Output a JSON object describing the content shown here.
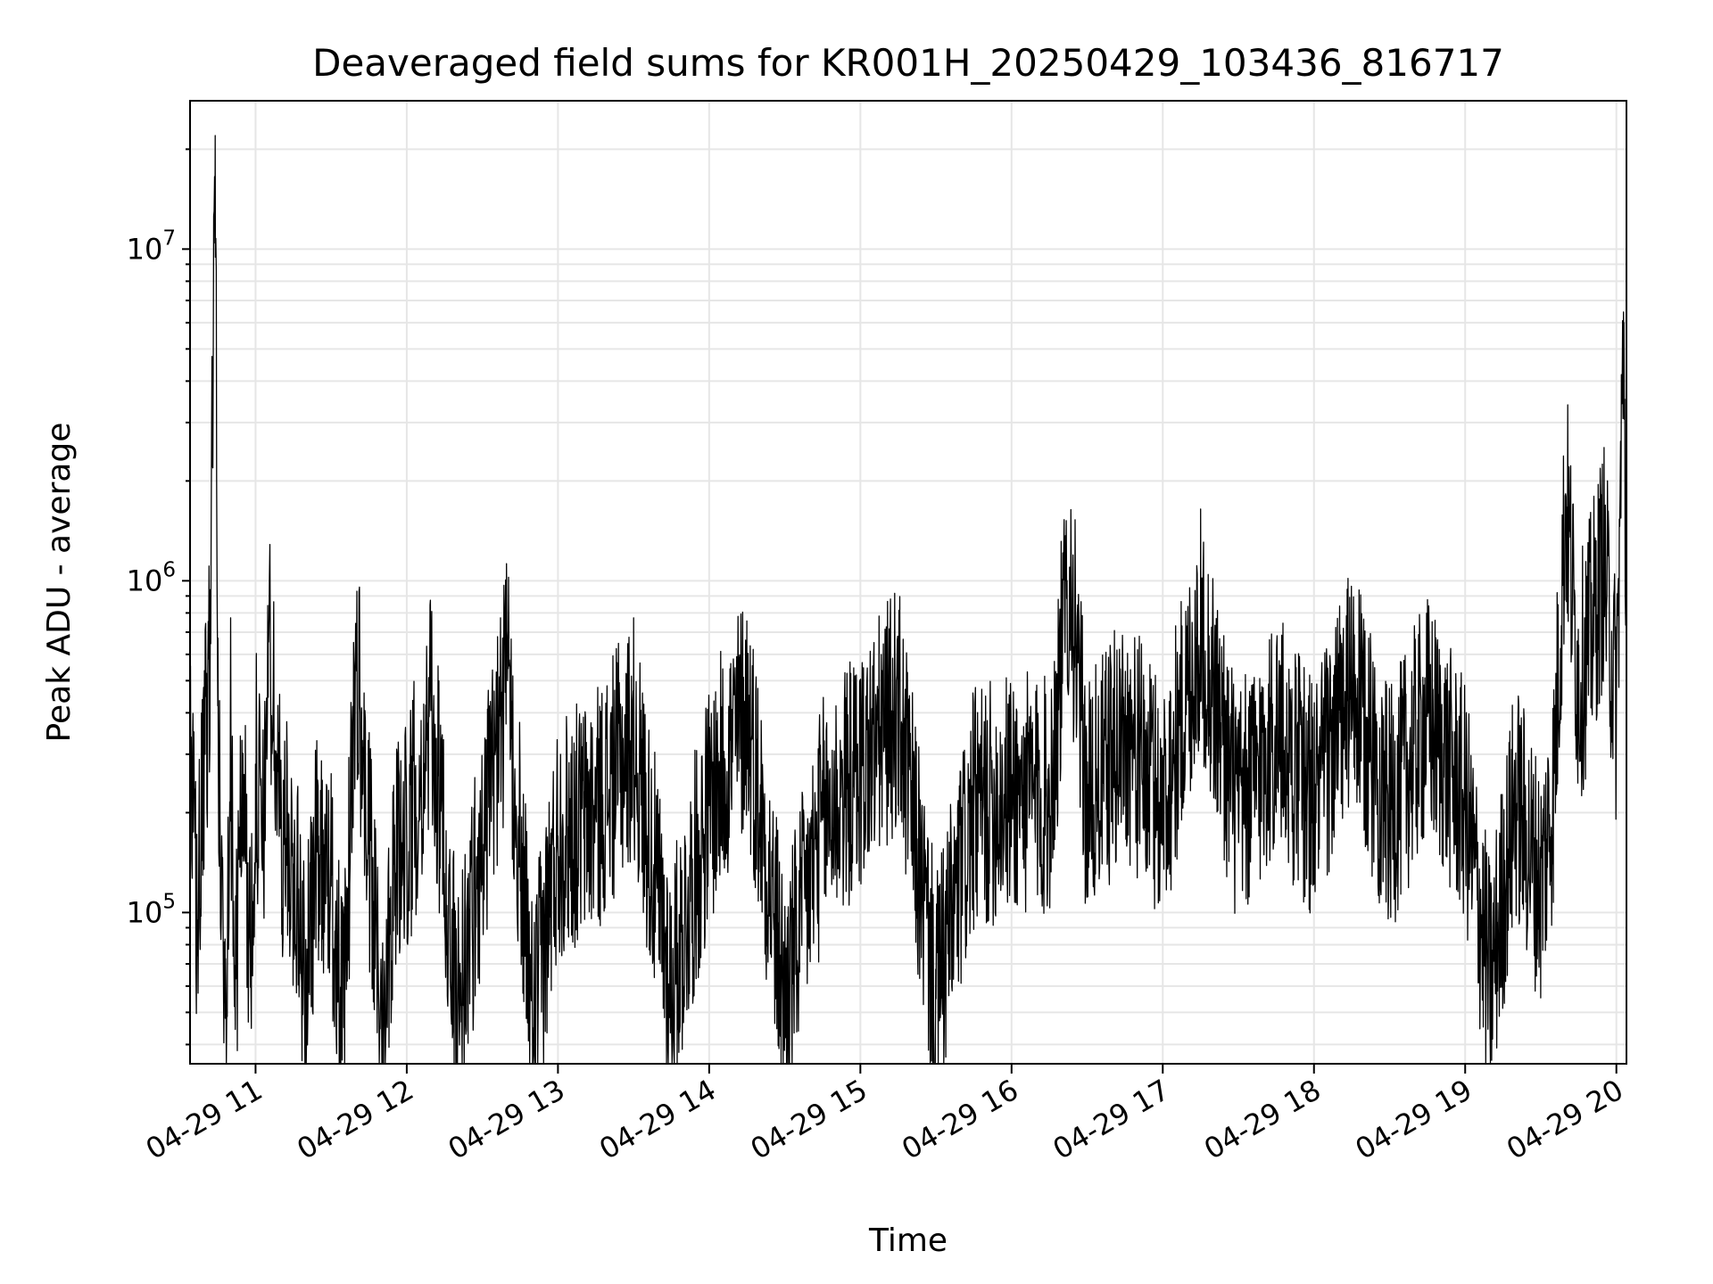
{
  "chart_data": {
    "type": "line",
    "title": "Deaveraged field sums for KR001H_20250429_103436_816717",
    "xlabel": "Time",
    "ylabel": "Peak ADU - average",
    "x_tick_labels": [
      "04-29 11",
      "04-29 12",
      "04-29 13",
      "04-29 14",
      "04-29 15",
      "04-29 16",
      "04-29 17",
      "04-29 18",
      "04-29 19",
      "04-29 20"
    ],
    "y_scale": "log",
    "y_tick_labels": [
      {
        "base": "10",
        "exp": "5"
      },
      {
        "base": "10",
        "exp": "6"
      },
      {
        "base": "10",
        "exp": "7"
      }
    ],
    "ylim": [
      35000,
      28000000
    ],
    "xlim": [
      "2025-04-29 10:34",
      "2025-04-29 20:04"
    ],
    "grid": true,
    "legend": "none",
    "line_color": "#000000",
    "grid_color": "#e6e6e6",
    "series": [
      {
        "x": [
          "2025-04-29 10:34",
          "2025-04-29 10:37",
          "2025-04-29 10:40",
          "2025-04-29 10:42",
          "2025-04-29 10:44",
          "2025-04-29 10:45",
          "2025-04-29 10:46",
          "2025-04-29 10:48",
          "2025-04-29 10:50",
          "2025-04-29 10:52",
          "2025-04-29 10:55",
          "2025-04-29 10:58",
          "2025-04-29 11:00",
          "2025-04-29 11:03",
          "2025-04-29 11:05",
          "2025-04-29 11:10",
          "2025-04-29 11:15",
          "2025-04-29 11:20",
          "2025-04-29 11:25",
          "2025-04-29 11:30",
          "2025-04-29 11:35",
          "2025-04-29 11:40",
          "2025-04-29 11:45",
          "2025-04-29 11:50",
          "2025-04-29 11:55",
          "2025-04-29 12:00",
          "2025-04-29 12:10",
          "2025-04-29 12:20",
          "2025-04-29 12:30",
          "2025-04-29 12:40",
          "2025-04-29 12:50",
          "2025-04-29 13:00",
          "2025-04-29 13:15",
          "2025-04-29 13:30",
          "2025-04-29 13:45",
          "2025-04-29 14:00",
          "2025-04-29 14:15",
          "2025-04-29 14:30",
          "2025-04-29 14:45",
          "2025-04-29 15:00",
          "2025-04-29 15:15",
          "2025-04-29 15:30",
          "2025-04-29 15:45",
          "2025-04-29 16:00",
          "2025-04-29 16:15",
          "2025-04-29 16:23",
          "2025-04-29 16:30",
          "2025-04-29 16:45",
          "2025-04-29 17:00",
          "2025-04-29 17:15",
          "2025-04-29 17:30",
          "2025-04-29 17:45",
          "2025-04-29 18:00",
          "2025-04-29 18:15",
          "2025-04-29 18:30",
          "2025-04-29 18:45",
          "2025-04-29 19:00",
          "2025-04-29 19:10",
          "2025-04-29 19:20",
          "2025-04-29 19:30",
          "2025-04-29 19:35",
          "2025-04-29 19:40",
          "2025-04-29 19:45",
          "2025-04-29 19:50",
          "2025-04-29 19:55",
          "2025-04-29 20:00",
          "2025-04-29 20:03",
          "2025-04-29 20:04"
        ],
        "y": [
          250000,
          95000,
          300000,
          650000,
          22000000,
          420000,
          150000,
          48000,
          380000,
          55000,
          300000,
          60000,
          280000,
          150000,
          700000,
          180000,
          140000,
          60000,
          170000,
          120000,
          45000,
          620000,
          150000,
          50000,
          140000,
          170000,
          390000,
          50000,
          160000,
          500000,
          45000,
          170000,
          200000,
          340000,
          60000,
          210000,
          420000,
          55000,
          190000,
          270000,
          420000,
          55000,
          200000,
          230000,
          220000,
          1100000,
          210000,
          350000,
          210000,
          700000,
          200000,
          350000,
          220000,
          470000,
          200000,
          390000,
          210000,
          60000,
          220000,
          120000,
          230000,
          1800000,
          480000,
          700000,
          1150000,
          420000,
          6000000,
          520000
        ]
      }
    ]
  }
}
